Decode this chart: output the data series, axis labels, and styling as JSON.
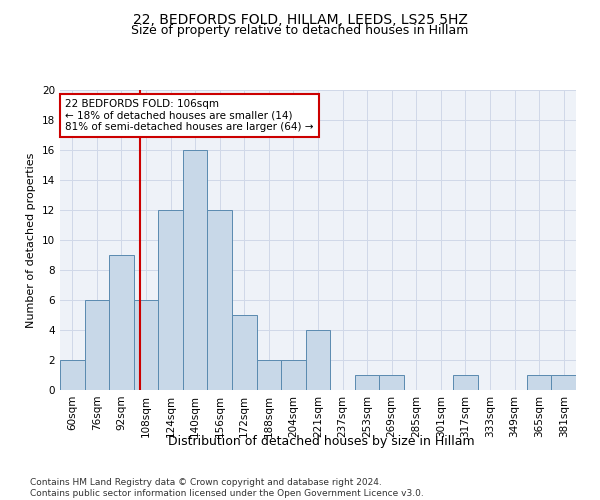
{
  "title": "22, BEDFORDS FOLD, HILLAM, LEEDS, LS25 5HZ",
  "subtitle": "Size of property relative to detached houses in Hillam",
  "xlabel": "Distribution of detached houses by size in Hillam",
  "ylabel": "Number of detached properties",
  "bin_labels": [
    "60sqm",
    "76sqm",
    "92sqm",
    "108sqm",
    "124sqm",
    "140sqm",
    "156sqm",
    "172sqm",
    "188sqm",
    "204sqm",
    "221sqm",
    "237sqm",
    "253sqm",
    "269sqm",
    "285sqm",
    "301sqm",
    "317sqm",
    "333sqm",
    "349sqm",
    "365sqm",
    "381sqm"
  ],
  "bar_heights": [
    2,
    6,
    9,
    6,
    12,
    16,
    12,
    5,
    2,
    2,
    4,
    0,
    1,
    1,
    0,
    0,
    1,
    0,
    0,
    1,
    1
  ],
  "bar_color": "#c8d8e8",
  "bar_edge_color": "#5a8ab0",
  "vline_x": 2.75,
  "vline_color": "#cc0000",
  "annotation_text": "22 BEDFORDS FOLD: 106sqm\n← 18% of detached houses are smaller (14)\n81% of semi-detached houses are larger (64) →",
  "annotation_box_color": "#ffffff",
  "annotation_box_edge": "#cc0000",
  "ylim": [
    0,
    20
  ],
  "yticks": [
    0,
    2,
    4,
    6,
    8,
    10,
    12,
    14,
    16,
    18,
    20
  ],
  "grid_color": "#d0d8e8",
  "bg_color": "#eef2f8",
  "footer": "Contains HM Land Registry data © Crown copyright and database right 2024.\nContains public sector information licensed under the Open Government Licence v3.0.",
  "title_fontsize": 10,
  "subtitle_fontsize": 9,
  "xlabel_fontsize": 9,
  "ylabel_fontsize": 8,
  "tick_fontsize": 7.5,
  "annotation_fontsize": 7.5,
  "footer_fontsize": 6.5
}
